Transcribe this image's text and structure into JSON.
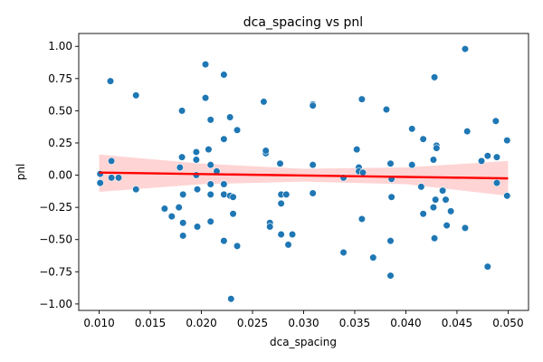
{
  "chart_data": {
    "type": "scatter",
    "title": "dca_spacing vs pnl",
    "xlabel": "dca_spacing",
    "ylabel": "pnl",
    "xlim": [
      0.008,
      0.052
    ],
    "ylim": [
      -1.05,
      1.1
    ],
    "xticks": [
      "0.010",
      "0.015",
      "0.020",
      "0.025",
      "0.030",
      "0.035",
      "0.040",
      "0.045",
      "0.050"
    ],
    "xtick_values": [
      0.01,
      0.015,
      0.02,
      0.025,
      0.03,
      0.035,
      0.04,
      0.045,
      0.05
    ],
    "yticks": [
      "−1.00",
      "−0.75",
      "−0.50",
      "−0.25",
      "0.00",
      "0.25",
      "0.50",
      "0.75",
      "1.00"
    ],
    "ytick_values": [
      -1.0,
      -0.75,
      -0.5,
      -0.25,
      0.0,
      0.25,
      0.5,
      0.75,
      1.0
    ],
    "grid": false,
    "legend": "none",
    "point_color": "#1f77b4",
    "regression_color": "#ff0000",
    "ci_color": "#ffcccc",
    "regression": {
      "x": [
        0.01,
        0.05
      ],
      "y": [
        0.02,
        -0.025
      ]
    },
    "confidence_band": {
      "x": [
        0.01,
        0.02,
        0.03,
        0.04,
        0.05
      ],
      "upper": [
        0.16,
        0.09,
        0.05,
        0.06,
        0.11
      ],
      "lower": [
        -0.13,
        -0.07,
        -0.05,
        -0.07,
        -0.16
      ]
    },
    "points": [
      {
        "x": 0.0101,
        "y": 0.01
      },
      {
        "x": 0.0101,
        "y": -0.06
      },
      {
        "x": 0.0111,
        "y": 0.73
      },
      {
        "x": 0.0112,
        "y": 0.11
      },
      {
        "x": 0.0112,
        "y": -0.02
      },
      {
        "x": 0.0119,
        "y": -0.02
      },
      {
        "x": 0.0136,
        "y": 0.62
      },
      {
        "x": 0.0136,
        "y": -0.11
      },
      {
        "x": 0.0164,
        "y": -0.26
      },
      {
        "x": 0.0171,
        "y": -0.32
      },
      {
        "x": 0.0178,
        "y": -0.25
      },
      {
        "x": 0.0179,
        "y": 0.06
      },
      {
        "x": 0.0181,
        "y": 0.5
      },
      {
        "x": 0.0181,
        "y": 0.14
      },
      {
        "x": 0.0182,
        "y": -0.15
      },
      {
        "x": 0.0182,
        "y": -0.37
      },
      {
        "x": 0.0182,
        "y": -0.47
      },
      {
        "x": 0.0195,
        "y": 0.18
      },
      {
        "x": 0.0195,
        "y": 0.12
      },
      {
        "x": 0.0195,
        "y": 0.0
      },
      {
        "x": 0.0196,
        "y": -0.11
      },
      {
        "x": 0.0196,
        "y": -0.4
      },
      {
        "x": 0.0204,
        "y": 0.86
      },
      {
        "x": 0.0204,
        "y": 0.6
      },
      {
        "x": 0.0207,
        "y": 0.2
      },
      {
        "x": 0.0209,
        "y": 0.43
      },
      {
        "x": 0.0209,
        "y": 0.08
      },
      {
        "x": 0.0209,
        "y": -0.07
      },
      {
        "x": 0.0209,
        "y": -0.15
      },
      {
        "x": 0.0209,
        "y": -0.36
      },
      {
        "x": 0.0215,
        "y": 0.03
      },
      {
        "x": 0.0222,
        "y": 0.78
      },
      {
        "x": 0.0222,
        "y": 0.28
      },
      {
        "x": 0.0222,
        "y": -0.07
      },
      {
        "x": 0.0222,
        "y": -0.15
      },
      {
        "x": 0.0222,
        "y": -0.51
      },
      {
        "x": 0.0228,
        "y": 0.45
      },
      {
        "x": 0.0228,
        "y": -0.16
      },
      {
        "x": 0.0229,
        "y": -0.96
      },
      {
        "x": 0.0231,
        "y": -0.17
      },
      {
        "x": 0.0231,
        "y": -0.3
      },
      {
        "x": 0.0235,
        "y": 0.35
      },
      {
        "x": 0.0235,
        "y": -0.55
      },
      {
        "x": 0.0261,
        "y": 0.57
      },
      {
        "x": 0.0263,
        "y": 0.17
      },
      {
        "x": 0.0263,
        "y": 0.19
      },
      {
        "x": 0.0267,
        "y": -0.37
      },
      {
        "x": 0.0267,
        "y": -0.4
      },
      {
        "x": 0.0277,
        "y": 0.09
      },
      {
        "x": 0.0278,
        "y": -0.15
      },
      {
        "x": 0.0278,
        "y": -0.22
      },
      {
        "x": 0.0278,
        "y": -0.46
      },
      {
        "x": 0.0283,
        "y": -0.15
      },
      {
        "x": 0.0285,
        "y": -0.54
      },
      {
        "x": 0.0289,
        "y": -0.46
      },
      {
        "x": 0.0309,
        "y": 0.55
      },
      {
        "x": 0.0309,
        "y": 0.54
      },
      {
        "x": 0.0309,
        "y": 0.08
      },
      {
        "x": 0.0309,
        "y": -0.14
      },
      {
        "x": 0.0339,
        "y": -0.02
      },
      {
        "x": 0.0339,
        "y": -0.6
      },
      {
        "x": 0.0352,
        "y": 0.2
      },
      {
        "x": 0.0354,
        "y": 0.06
      },
      {
        "x": 0.0354,
        "y": 0.03
      },
      {
        "x": 0.0357,
        "y": 0.59
      },
      {
        "x": 0.0357,
        "y": -0.34
      },
      {
        "x": 0.0358,
        "y": 0.02
      },
      {
        "x": 0.0368,
        "y": -0.64
      },
      {
        "x": 0.0381,
        "y": 0.51
      },
      {
        "x": 0.0385,
        "y": 0.09
      },
      {
        "x": 0.0385,
        "y": -0.51
      },
      {
        "x": 0.0385,
        "y": -0.78
      },
      {
        "x": 0.0386,
        "y": -0.03
      },
      {
        "x": 0.0386,
        "y": -0.17
      },
      {
        "x": 0.0406,
        "y": 0.36
      },
      {
        "x": 0.0406,
        "y": 0.08
      },
      {
        "x": 0.0415,
        "y": -0.09
      },
      {
        "x": 0.0417,
        "y": 0.28
      },
      {
        "x": 0.0417,
        "y": -0.3
      },
      {
        "x": 0.0427,
        "y": 0.12
      },
      {
        "x": 0.0427,
        "y": -0.25
      },
      {
        "x": 0.0428,
        "y": 0.76
      },
      {
        "x": 0.0428,
        "y": -0.49
      },
      {
        "x": 0.0429,
        "y": -0.19
      },
      {
        "x": 0.043,
        "y": 0.23
      },
      {
        "x": 0.043,
        "y": 0.21
      },
      {
        "x": 0.0436,
        "y": -0.12
      },
      {
        "x": 0.0439,
        "y": -0.19
      },
      {
        "x": 0.044,
        "y": -0.39
      },
      {
        "x": 0.0444,
        "y": -0.28
      },
      {
        "x": 0.0458,
        "y": 0.98
      },
      {
        "x": 0.0458,
        "y": -0.41
      },
      {
        "x": 0.046,
        "y": 0.34
      },
      {
        "x": 0.0474,
        "y": 0.11
      },
      {
        "x": 0.048,
        "y": 0.15
      },
      {
        "x": 0.048,
        "y": -0.71
      },
      {
        "x": 0.0488,
        "y": 0.42
      },
      {
        "x": 0.0489,
        "y": 0.14
      },
      {
        "x": 0.0489,
        "y": -0.06
      },
      {
        "x": 0.0499,
        "y": 0.27
      },
      {
        "x": 0.0499,
        "y": -0.16
      }
    ]
  }
}
